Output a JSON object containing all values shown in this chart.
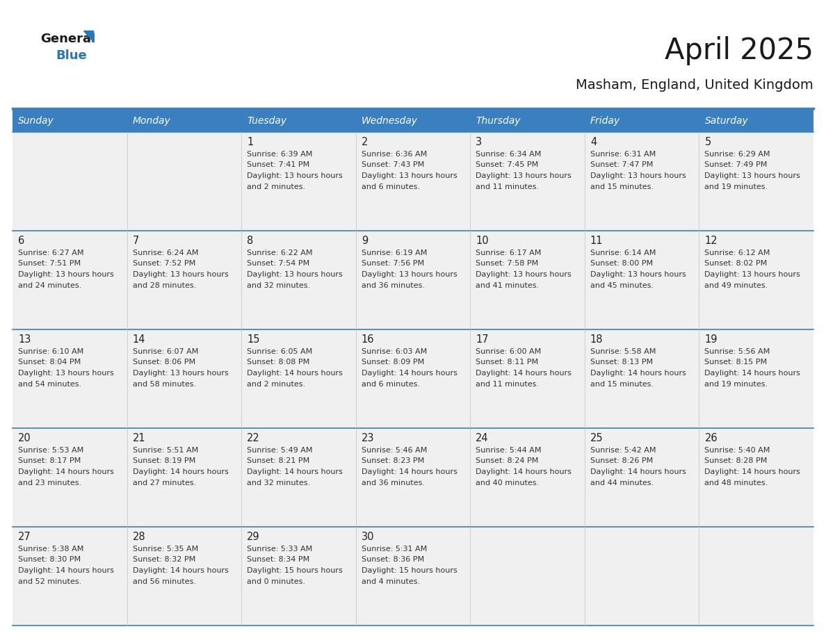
{
  "title": "April 2025",
  "subtitle": "Masham, England, United Kingdom",
  "days_of_week": [
    "Sunday",
    "Monday",
    "Tuesday",
    "Wednesday",
    "Thursday",
    "Friday",
    "Saturday"
  ],
  "header_bg": "#3a7fbf",
  "header_text": "#ffffff",
  "cell_bg": "#f0f0f0",
  "border_color": "#3a7fbf",
  "title_color": "#1a1a1a",
  "subtitle_color": "#1a1a1a",
  "day_number_color": "#222222",
  "cell_text_color": "#333333",
  "logo_general_color": "#1a1a1a",
  "logo_blue_color": "#2878b8",
  "calendar": [
    [
      null,
      null,
      {
        "day": 1,
        "sunrise": "6:39 AM",
        "sunset": "7:41 PM",
        "daylight": "13 hours and 2 minutes."
      },
      {
        "day": 2,
        "sunrise": "6:36 AM",
        "sunset": "7:43 PM",
        "daylight": "13 hours and 6 minutes."
      },
      {
        "day": 3,
        "sunrise": "6:34 AM",
        "sunset": "7:45 PM",
        "daylight": "13 hours and 11 minutes."
      },
      {
        "day": 4,
        "sunrise": "6:31 AM",
        "sunset": "7:47 PM",
        "daylight": "13 hours and 15 minutes."
      },
      {
        "day": 5,
        "sunrise": "6:29 AM",
        "sunset": "7:49 PM",
        "daylight": "13 hours and 19 minutes."
      }
    ],
    [
      {
        "day": 6,
        "sunrise": "6:27 AM",
        "sunset": "7:51 PM",
        "daylight": "13 hours and 24 minutes."
      },
      {
        "day": 7,
        "sunrise": "6:24 AM",
        "sunset": "7:52 PM",
        "daylight": "13 hours and 28 minutes."
      },
      {
        "day": 8,
        "sunrise": "6:22 AM",
        "sunset": "7:54 PM",
        "daylight": "13 hours and 32 minutes."
      },
      {
        "day": 9,
        "sunrise": "6:19 AM",
        "sunset": "7:56 PM",
        "daylight": "13 hours and 36 minutes."
      },
      {
        "day": 10,
        "sunrise": "6:17 AM",
        "sunset": "7:58 PM",
        "daylight": "13 hours and 41 minutes."
      },
      {
        "day": 11,
        "sunrise": "6:14 AM",
        "sunset": "8:00 PM",
        "daylight": "13 hours and 45 minutes."
      },
      {
        "day": 12,
        "sunrise": "6:12 AM",
        "sunset": "8:02 PM",
        "daylight": "13 hours and 49 minutes."
      }
    ],
    [
      {
        "day": 13,
        "sunrise": "6:10 AM",
        "sunset": "8:04 PM",
        "daylight": "13 hours and 54 minutes."
      },
      {
        "day": 14,
        "sunrise": "6:07 AM",
        "sunset": "8:06 PM",
        "daylight": "13 hours and 58 minutes."
      },
      {
        "day": 15,
        "sunrise": "6:05 AM",
        "sunset": "8:08 PM",
        "daylight": "14 hours and 2 minutes."
      },
      {
        "day": 16,
        "sunrise": "6:03 AM",
        "sunset": "8:09 PM",
        "daylight": "14 hours and 6 minutes."
      },
      {
        "day": 17,
        "sunrise": "6:00 AM",
        "sunset": "8:11 PM",
        "daylight": "14 hours and 11 minutes."
      },
      {
        "day": 18,
        "sunrise": "5:58 AM",
        "sunset": "8:13 PM",
        "daylight": "14 hours and 15 minutes."
      },
      {
        "day": 19,
        "sunrise": "5:56 AM",
        "sunset": "8:15 PM",
        "daylight": "14 hours and 19 minutes."
      }
    ],
    [
      {
        "day": 20,
        "sunrise": "5:53 AM",
        "sunset": "8:17 PM",
        "daylight": "14 hours and 23 minutes."
      },
      {
        "day": 21,
        "sunrise": "5:51 AM",
        "sunset": "8:19 PM",
        "daylight": "14 hours and 27 minutes."
      },
      {
        "day": 22,
        "sunrise": "5:49 AM",
        "sunset": "8:21 PM",
        "daylight": "14 hours and 32 minutes."
      },
      {
        "day": 23,
        "sunrise": "5:46 AM",
        "sunset": "8:23 PM",
        "daylight": "14 hours and 36 minutes."
      },
      {
        "day": 24,
        "sunrise": "5:44 AM",
        "sunset": "8:24 PM",
        "daylight": "14 hours and 40 minutes."
      },
      {
        "day": 25,
        "sunrise": "5:42 AM",
        "sunset": "8:26 PM",
        "daylight": "14 hours and 44 minutes."
      },
      {
        "day": 26,
        "sunrise": "5:40 AM",
        "sunset": "8:28 PM",
        "daylight": "14 hours and 48 minutes."
      }
    ],
    [
      {
        "day": 27,
        "sunrise": "5:38 AM",
        "sunset": "8:30 PM",
        "daylight": "14 hours and 52 minutes."
      },
      {
        "day": 28,
        "sunrise": "5:35 AM",
        "sunset": "8:32 PM",
        "daylight": "14 hours and 56 minutes."
      },
      {
        "day": 29,
        "sunrise": "5:33 AM",
        "sunset": "8:34 PM",
        "daylight": "15 hours and 0 minutes."
      },
      {
        "day": 30,
        "sunrise": "5:31 AM",
        "sunset": "8:36 PM",
        "daylight": "15 hours and 4 minutes."
      },
      null,
      null,
      null
    ]
  ]
}
